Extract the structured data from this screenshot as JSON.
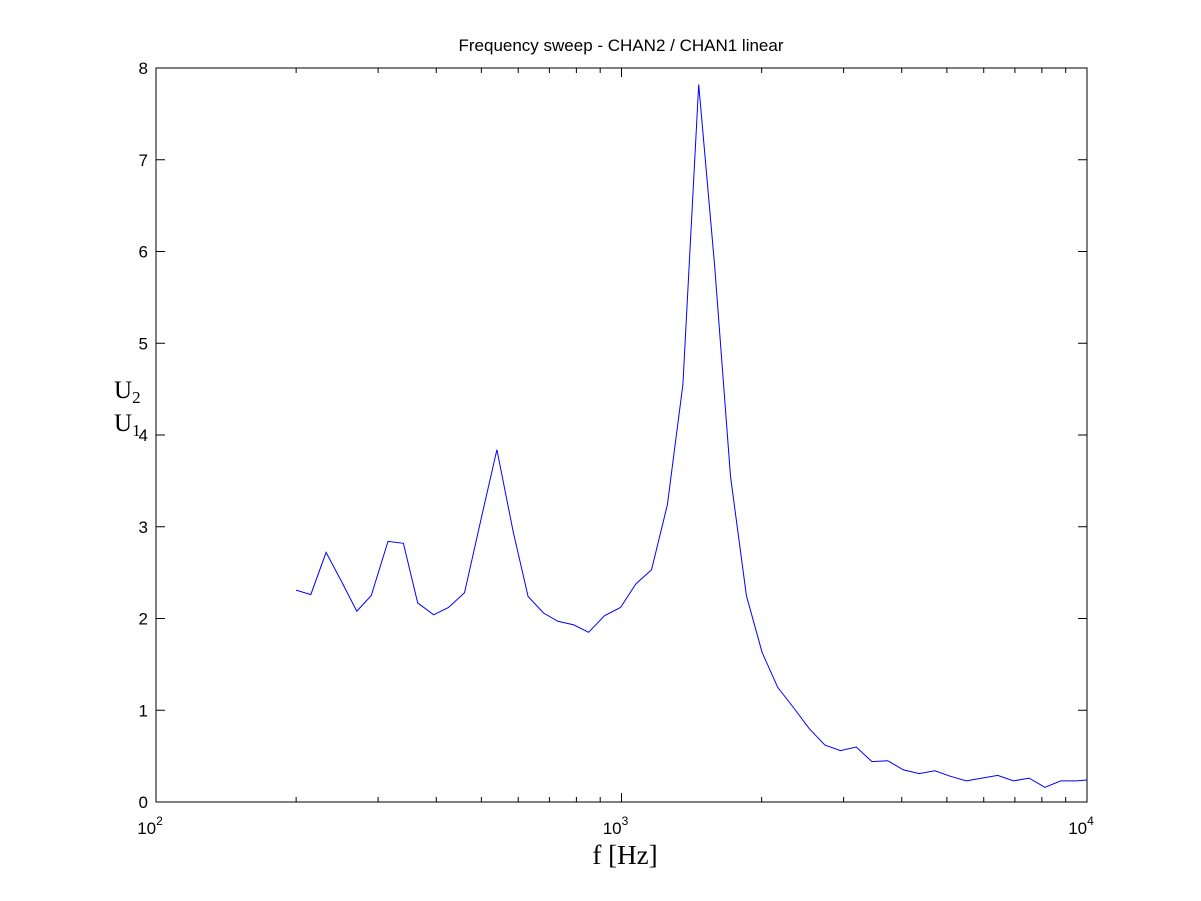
{
  "chart_data": {
    "type": "line",
    "title": "Frequency sweep - CHAN2 / CHAN1 linear",
    "xlabel": "f [Hz]",
    "ylabel_num": "U",
    "ylabel_num_sub": "2",
    "ylabel_den": "U",
    "ylabel_den_sub": "1",
    "xscale": "log",
    "xlim": [
      100,
      10000
    ],
    "ylim": [
      0,
      8
    ],
    "grid": false,
    "x_ticks": [
      {
        "base": "10",
        "exp": "2"
      },
      {
        "base": "10",
        "exp": "3"
      },
      {
        "base": "10",
        "exp": "4"
      }
    ],
    "y_ticks": [
      "0",
      "1",
      "2",
      "3",
      "4",
      "5",
      "6",
      "7",
      "8"
    ],
    "color": "#0000ff",
    "series": [
      {
        "x": [
          200,
          215,
          232,
          250,
          270,
          290,
          315,
          340,
          365,
          395,
          425,
          460,
          500,
          540,
          585,
          630,
          680,
          730,
          790,
          850,
          920,
          995,
          1075,
          1160,
          1255,
          1355,
          1465,
          1585,
          1715,
          1855,
          2005,
          2165,
          2340,
          2530,
          2735,
          2955,
          3195,
          3450,
          3730,
          4035,
          4360,
          4710,
          5090,
          5505,
          5950,
          6430,
          6950,
          7510,
          8120,
          8780,
          9490,
          10000
        ],
        "y": [
          2.31,
          2.26,
          2.72,
          2.41,
          2.08,
          2.25,
          2.84,
          2.82,
          2.17,
          2.04,
          2.12,
          2.28,
          3.1,
          3.84,
          2.95,
          2.24,
          2.06,
          1.97,
          1.93,
          1.85,
          2.03,
          2.12,
          2.38,
          2.53,
          3.24,
          4.55,
          7.82,
          5.85,
          3.55,
          2.25,
          1.63,
          1.25,
          1.03,
          0.8,
          0.62,
          0.56,
          0.6,
          0.44,
          0.45,
          0.35,
          0.31,
          0.34,
          0.28,
          0.23,
          0.26,
          0.29,
          0.23,
          0.26,
          0.16,
          0.23,
          0.23,
          0.24
        ]
      }
    ]
  }
}
